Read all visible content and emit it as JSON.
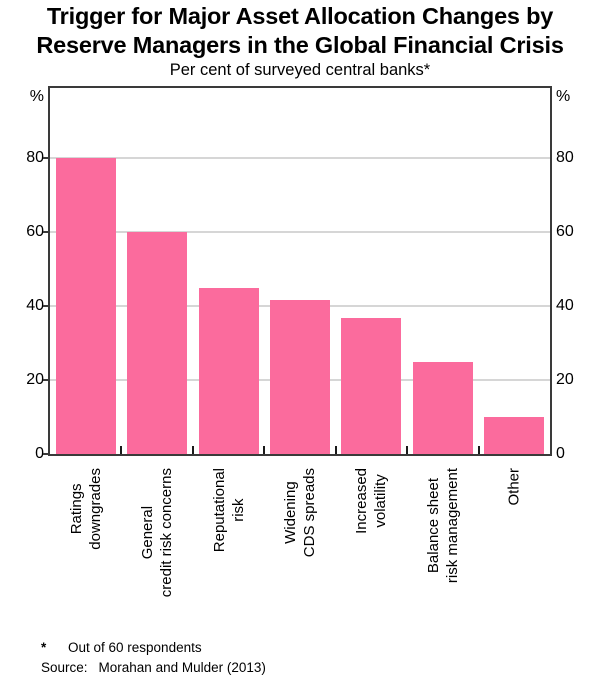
{
  "title": {
    "line1": "Trigger for Major Asset Allocation Changes by",
    "line2": "Reserve Managers in the Global Financial Crisis"
  },
  "subtitle": "Per cent of surveyed central banks*",
  "y_axis": {
    "unit": "%",
    "tick_labels": [
      80,
      60,
      40,
      20,
      0
    ],
    "gridlines": [
      20,
      40,
      60,
      80
    ],
    "ymax": 99
  },
  "chart_data": {
    "type": "bar",
    "title": "Trigger for Major Asset Allocation Changes by Reserve Managers in the Global Financial Crisis",
    "subtitle": "Per cent of surveyed central banks*",
    "categories": [
      "Ratings downgrades",
      "General credit risk concerns",
      "Reputational risk",
      "Widening CDS spreads",
      "Increased volatility",
      "Balance sheet risk management",
      "Other"
    ],
    "category_label_lines": [
      [
        "Ratings",
        "downgrades"
      ],
      [
        "General",
        "credit risk concerns"
      ],
      [
        "Reputational",
        "risk"
      ],
      [
        "Widening",
        "CDS spreads"
      ],
      [
        "Increased",
        "volatility"
      ],
      [
        "Balance sheet",
        "risk management"
      ],
      [
        "Other"
      ]
    ],
    "values": [
      80,
      60,
      45,
      41.7,
      36.7,
      25,
      10
    ],
    "xlabel": "",
    "ylabel": "%",
    "ylim": [
      0,
      99
    ],
    "grid": "horizontal",
    "legend": "none"
  },
  "footnote": {
    "marker": "*",
    "text": "Out of 60 respondents",
    "source_label": "Source:",
    "source_text": "Morahan and Mulder (2013)"
  },
  "colors": {
    "bar": "#fb6b9d",
    "gridline": "#d6d6d6",
    "frame": "#3a3a3a",
    "text": "#000000"
  }
}
